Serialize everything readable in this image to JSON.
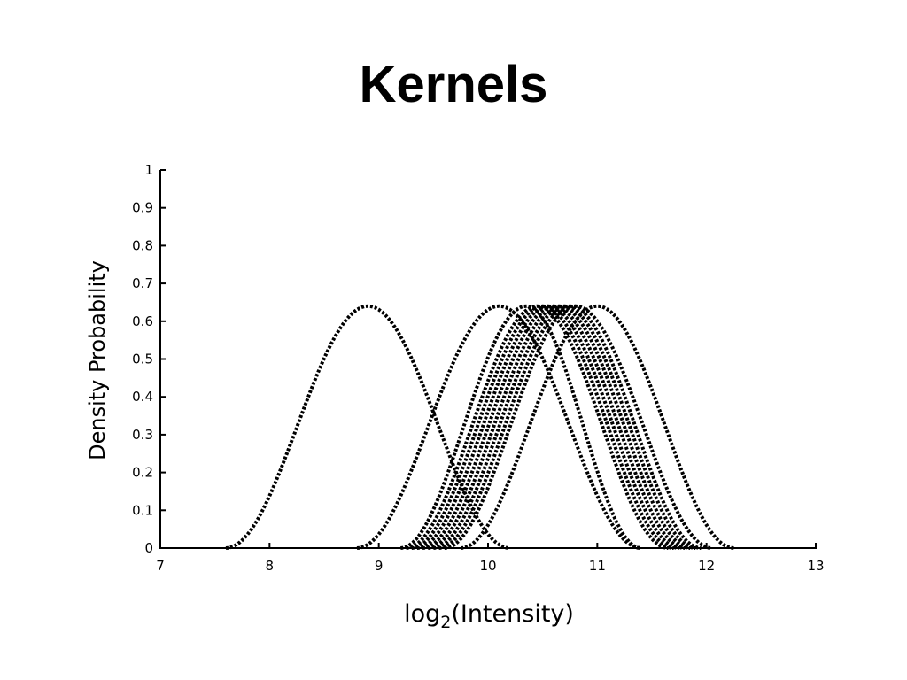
{
  "chart_data": {
    "type": "line",
    "title": "Kernels",
    "xlabel_main": "log",
    "xlabel_sub": "2",
    "xlabel_rest": "(Intensity)",
    "ylabel": "Density Probability",
    "xlim": [
      7,
      13
    ],
    "ylim": [
      0,
      1
    ],
    "x_ticks": [
      "7",
      "8",
      "9",
      "10",
      "11",
      "12",
      "13"
    ],
    "y_ticks": [
      "0",
      "0.1",
      "0.2",
      "0.3",
      "0.4",
      "0.5",
      "0.6",
      "0.7",
      "0.8",
      "0.9",
      "1"
    ],
    "grid": false,
    "line_style": "dotted",
    "peak_density": 0.64,
    "series": [
      {
        "center": 8.9,
        "start": 7.6,
        "end": 10.2
      },
      {
        "center": 10.1,
        "start": 8.8,
        "end": 11.4
      },
      {
        "center": 10.35,
        "start": 9.2,
        "end": 11.4
      },
      {
        "center": 10.45,
        "start": 9.25,
        "end": 11.65
      },
      {
        "center": 10.5,
        "start": 9.3,
        "end": 11.7
      },
      {
        "center": 10.55,
        "start": 9.35,
        "end": 11.75
      },
      {
        "center": 10.6,
        "start": 9.4,
        "end": 11.8
      },
      {
        "center": 10.65,
        "start": 9.45,
        "end": 11.85
      },
      {
        "center": 10.7,
        "start": 9.5,
        "end": 11.9
      },
      {
        "center": 10.75,
        "start": 9.55,
        "end": 11.95
      },
      {
        "center": 10.8,
        "start": 9.6,
        "end": 12.05
      },
      {
        "center": 11.0,
        "start": 9.75,
        "end": 12.25
      }
    ]
  }
}
